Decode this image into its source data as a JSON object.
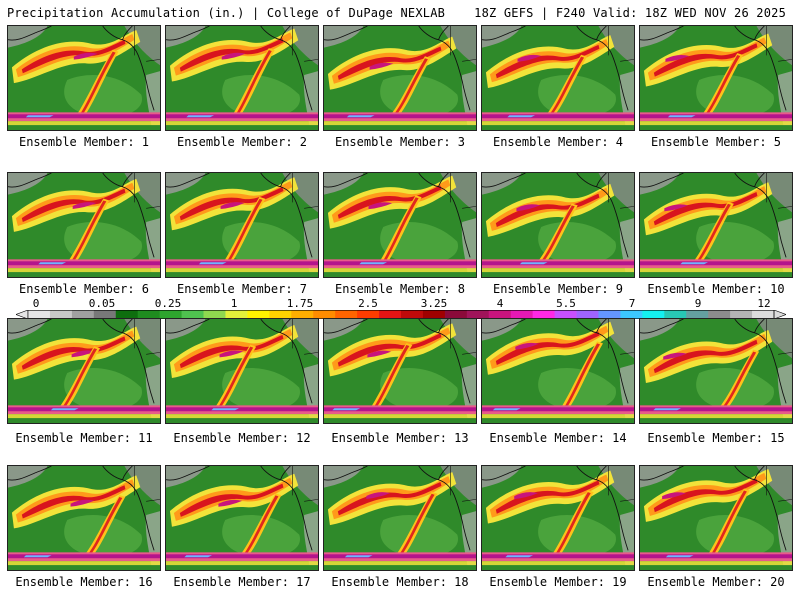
{
  "header": {
    "left": "Precipitation Accumulation (in.) | College of DuPage NEXLAB",
    "right": "18Z GEFS | F240 Valid: 18Z WED NOV 26 2025"
  },
  "colorbar": {
    "labels": [
      "0",
      "0.05",
      "0.25",
      "1",
      "1.75",
      "2.5",
      "3.25",
      "4",
      "5.5",
      "7",
      "9",
      "12"
    ],
    "colors": [
      "#e6e6e6",
      "#c8c8c8",
      "#a0a0a0",
      "#787878",
      "#0e6e0e",
      "#1f8c1f",
      "#2ea52e",
      "#4fc24f",
      "#8fd84f",
      "#e3f03a",
      "#fff200",
      "#ffd200",
      "#ffae00",
      "#ff8c00",
      "#ff6400",
      "#ff3c00",
      "#e51414",
      "#c00a0a",
      "#a00000",
      "#8b0a3a",
      "#a0145a",
      "#c8147d",
      "#e619b4",
      "#ff28e6",
      "#c850ff",
      "#a064ff",
      "#6496ff",
      "#3cc8ff",
      "#14f0f0",
      "#28c8b4",
      "#64a0a0",
      "#8c8c8c",
      "#b4b4b4",
      "#dcdcdc"
    ]
  },
  "panels": [
    {
      "caption": "Ensemble Member: 1"
    },
    {
      "caption": "Ensemble Member: 2"
    },
    {
      "caption": "Ensemble Member: 3"
    },
    {
      "caption": "Ensemble Member: 4"
    },
    {
      "caption": "Ensemble Member: 5"
    },
    {
      "caption": "Ensemble Member: 6"
    },
    {
      "caption": "Ensemble Member: 7"
    },
    {
      "caption": "Ensemble Member: 8"
    },
    {
      "caption": "Ensemble Member: 9"
    },
    {
      "caption": "Ensemble Member: 10"
    },
    {
      "caption": "Ensemble Member: 11"
    },
    {
      "caption": "Ensemble Member: 12"
    },
    {
      "caption": "Ensemble Member: 13"
    },
    {
      "caption": "Ensemble Member: 14"
    },
    {
      "caption": "Ensemble Member: 15"
    },
    {
      "caption": "Ensemble Member: 16"
    },
    {
      "caption": "Ensemble Member: 17"
    },
    {
      "caption": "Ensemble Member: 18"
    },
    {
      "caption": "Ensemble Member: 19"
    },
    {
      "caption": "Ensemble Member: 20"
    }
  ]
}
